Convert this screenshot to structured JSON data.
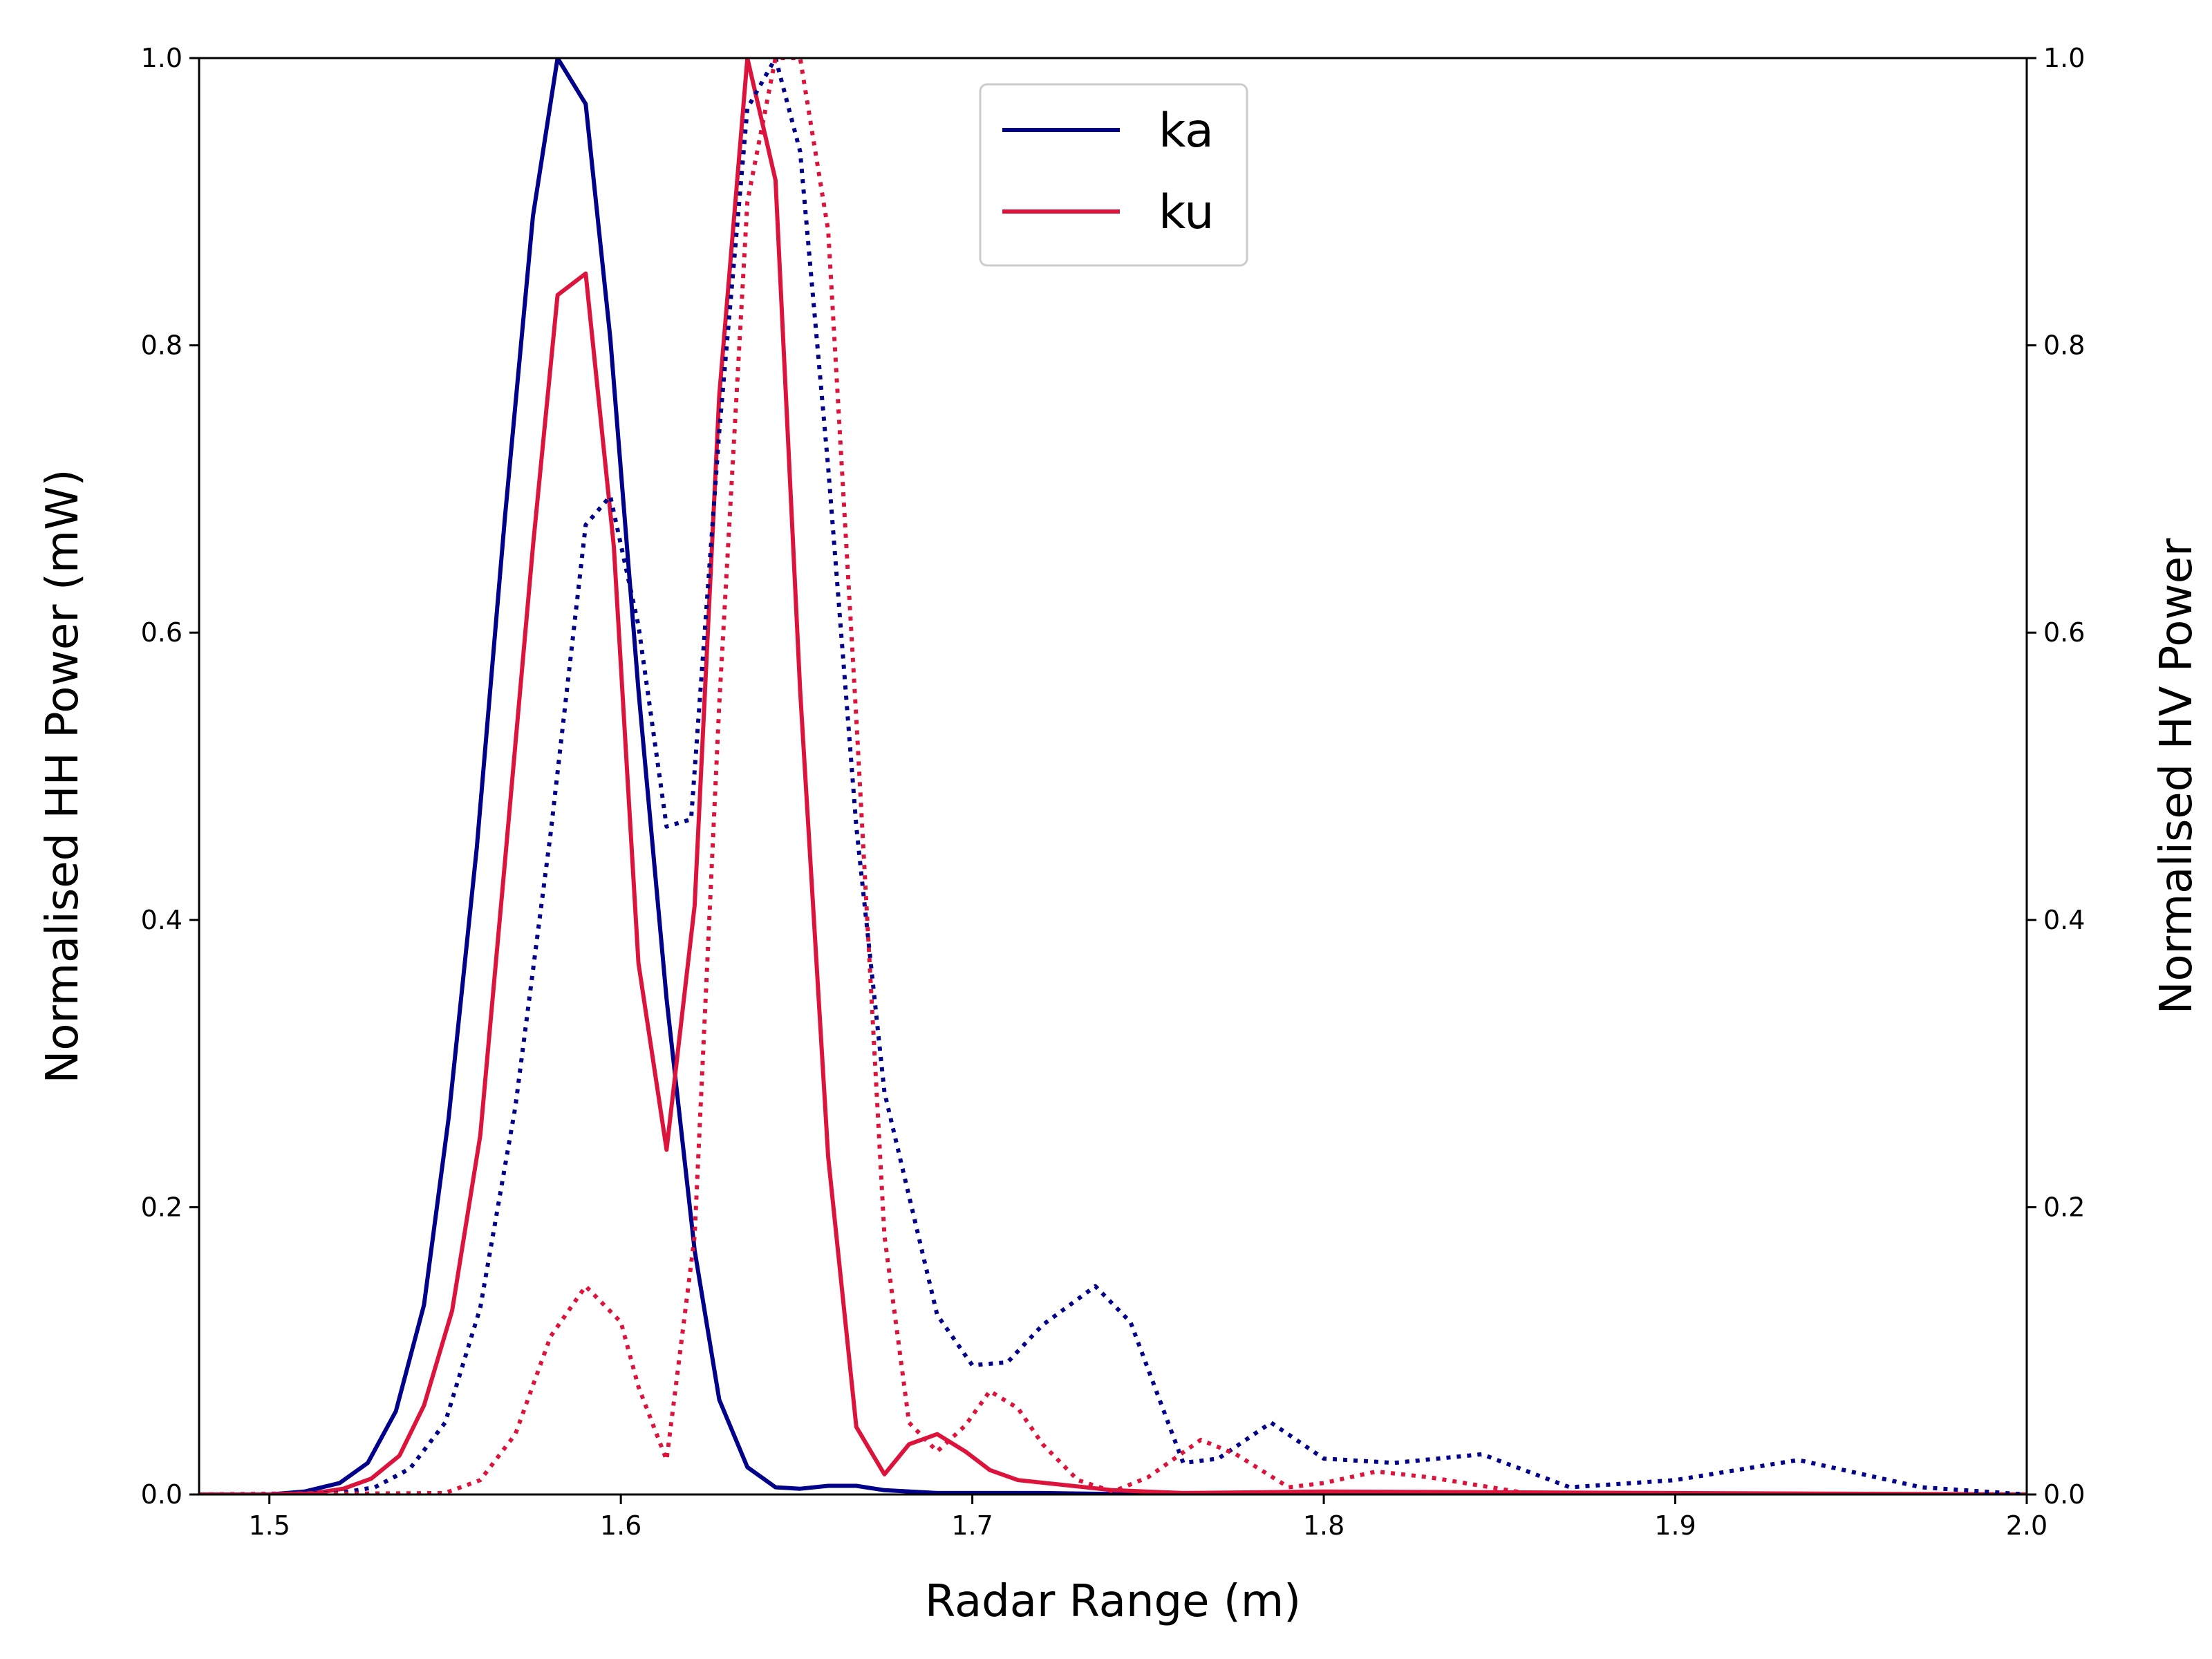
{
  "chart_data": {
    "type": "line",
    "title": "",
    "xlabel": "Radar Range (m)",
    "ylabel": "Normalised HH Power (mW)",
    "y2label": "Normalised HV Power",
    "xlim": [
      1.48,
      2.0
    ],
    "ylim": [
      0.0,
      1.0
    ],
    "y2lim": [
      0.0,
      1.0
    ],
    "xticks": [
      "1.5",
      "1.6",
      "1.7",
      "1.8",
      "1.9",
      "2.0"
    ],
    "yticks": [
      "0.0",
      "0.2",
      "0.4",
      "0.6",
      "0.8",
      "1.0"
    ],
    "y2ticks": [
      "0.0",
      "0.2",
      "0.4",
      "0.6",
      "0.8",
      "1.0"
    ],
    "grid": false,
    "legend": {
      "placement": "upper-center",
      "entries": [
        {
          "name": "ka",
          "color": "#00008b"
        },
        {
          "name": "ku",
          "color": "#dc143c"
        }
      ]
    },
    "series": [
      {
        "name": "ka",
        "axis": "HH",
        "style": "solid",
        "color": "#00008b",
        "x": [
          1.48,
          1.5,
          1.51,
          1.52,
          1.528,
          1.536,
          1.544,
          1.551,
          1.559,
          1.567,
          1.575,
          1.582,
          1.59,
          1.597,
          1.605,
          1.613,
          1.621,
          1.628,
          1.636,
          1.644,
          1.651,
          1.659,
          1.667,
          1.675,
          1.69,
          1.72,
          1.75,
          1.8,
          1.9,
          2.0
        ],
        "y": [
          0.0,
          0.0,
          0.002,
          0.008,
          0.022,
          0.058,
          0.132,
          0.262,
          0.45,
          0.68,
          0.89,
          1.0,
          0.968,
          0.805,
          0.56,
          0.345,
          0.17,
          0.066,
          0.019,
          0.005,
          0.004,
          0.006,
          0.006,
          0.003,
          0.001,
          0.001,
          0.0,
          0.0,
          0.0,
          0.0
        ]
      },
      {
        "name": "ku",
        "axis": "HH",
        "style": "solid",
        "color": "#dc143c",
        "x": [
          1.48,
          1.5,
          1.513,
          1.521,
          1.529,
          1.537,
          1.544,
          1.552,
          1.56,
          1.567,
          1.575,
          1.582,
          1.59,
          1.598,
          1.605,
          1.613,
          1.621,
          1.628,
          1.636,
          1.644,
          1.651,
          1.659,
          1.667,
          1.675,
          1.682,
          1.69,
          1.698,
          1.705,
          1.713,
          1.74,
          1.76,
          1.8,
          2.0
        ],
        "y": [
          0.0,
          0.0,
          0.001,
          0.004,
          0.011,
          0.027,
          0.062,
          0.128,
          0.25,
          0.44,
          0.66,
          0.835,
          0.85,
          0.66,
          0.37,
          0.24,
          0.41,
          0.765,
          1.0,
          0.915,
          0.56,
          0.235,
          0.047,
          0.014,
          0.035,
          0.042,
          0.03,
          0.017,
          0.01,
          0.003,
          0.001,
          0.002,
          0.0
        ]
      },
      {
        "name": "ka",
        "axis": "HV",
        "style": "dotted",
        "color": "#00008b",
        "x": [
          1.48,
          1.52,
          1.53,
          1.54,
          1.55,
          1.56,
          1.57,
          1.58,
          1.59,
          1.597,
          1.605,
          1.613,
          1.62,
          1.628,
          1.636,
          1.644,
          1.651,
          1.659,
          1.667,
          1.675,
          1.69,
          1.7,
          1.71,
          1.72,
          1.735,
          1.745,
          1.76,
          1.77,
          1.785,
          1.8,
          1.82,
          1.845,
          1.87,
          1.9,
          1.935,
          1.97,
          2.0
        ],
        "y": [
          0.0,
          0.001,
          0.005,
          0.018,
          0.05,
          0.13,
          0.27,
          0.46,
          0.675,
          0.695,
          0.605,
          0.465,
          0.47,
          0.74,
          0.965,
          1.0,
          0.935,
          0.715,
          0.465,
          0.28,
          0.125,
          0.09,
          0.092,
          0.118,
          0.145,
          0.12,
          0.022,
          0.025,
          0.05,
          0.025,
          0.022,
          0.028,
          0.005,
          0.01,
          0.024,
          0.005,
          0.0
        ]
      },
      {
        "name": "ku",
        "axis": "HV",
        "style": "dotted",
        "color": "#dc143c",
        "x": [
          1.48,
          1.55,
          1.56,
          1.57,
          1.58,
          1.59,
          1.6,
          1.605,
          1.613,
          1.621,
          1.628,
          1.636,
          1.644,
          1.651,
          1.659,
          1.667,
          1.675,
          1.682,
          1.69,
          1.698,
          1.705,
          1.713,
          1.72,
          1.73,
          1.74,
          1.75,
          1.765,
          1.775,
          1.79,
          1.8,
          1.815,
          1.83,
          1.86,
          2.0
        ],
        "y": [
          0.0,
          0.001,
          0.01,
          0.042,
          0.11,
          0.145,
          0.12,
          0.075,
          0.024,
          0.18,
          0.55,
          0.9,
          1.0,
          1.0,
          0.88,
          0.54,
          0.18,
          0.05,
          0.03,
          0.048,
          0.072,
          0.06,
          0.035,
          0.01,
          0.002,
          0.012,
          0.038,
          0.028,
          0.005,
          0.008,
          0.016,
          0.012,
          0.0,
          0.0
        ]
      }
    ]
  }
}
